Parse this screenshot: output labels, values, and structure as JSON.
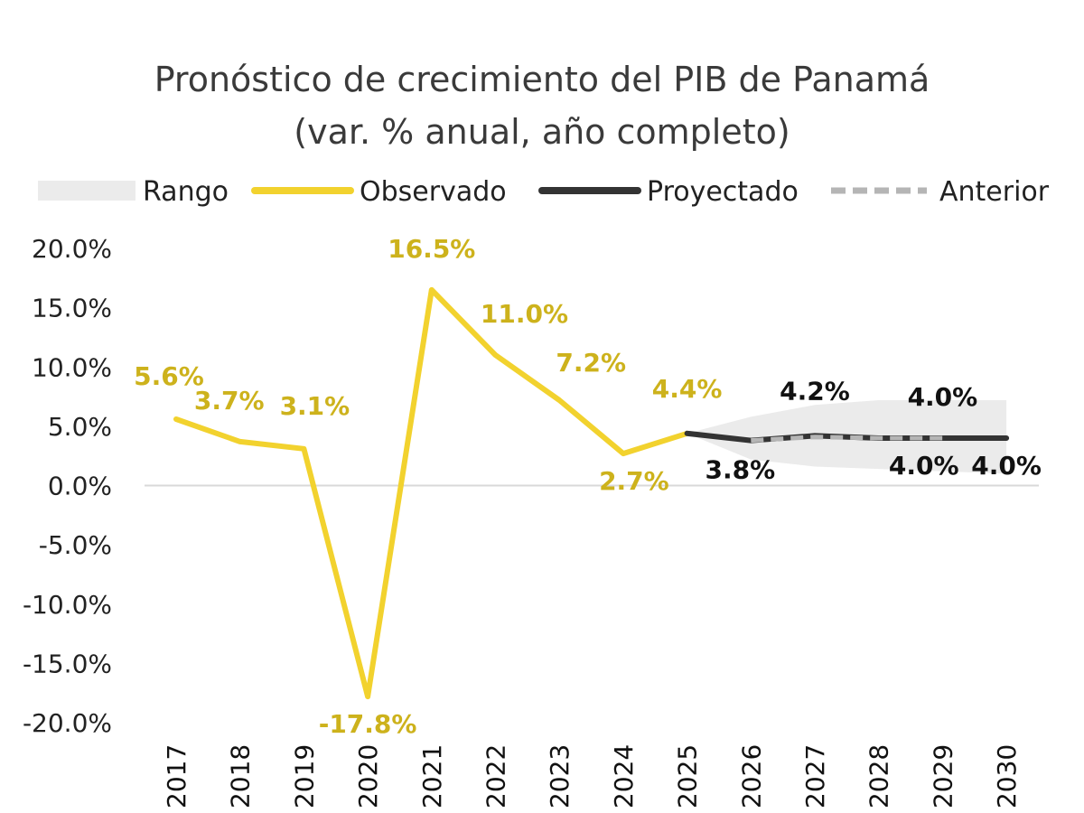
{
  "chart_data": {
    "type": "line",
    "title": "Pronóstico de crecimiento del PIB de Panamá",
    "subtitle": "(var. % anual, año completo)",
    "x": [
      "2017",
      "2018",
      "2019",
      "2020",
      "2021",
      "2022",
      "2023",
      "2024",
      "2025",
      "2026",
      "2027",
      "2028",
      "2029",
      "2030"
    ],
    "ylim": [
      -20,
      20
    ],
    "yticks": [
      "20.0%",
      "15.0%",
      "10.0%",
      "5.0%",
      "0.0%",
      "-5.0%",
      "-10.0%",
      "-15.0%",
      "-20.0%"
    ],
    "grid": false,
    "legend_position": "top",
    "legend": [
      "Rango",
      "Observado",
      "Proyectado",
      "Anterior"
    ],
    "series": [
      {
        "name": "Observado",
        "color": "#F2D22E",
        "values": [
          5.6,
          3.7,
          3.1,
          -17.8,
          16.5,
          11.0,
          7.2,
          2.7,
          4.4,
          null,
          null,
          null,
          null,
          null
        ],
        "labels": [
          "5.6%",
          "3.7%",
          "3.1%",
          "-17.8%",
          "16.5%",
          "11.0%",
          "7.2%",
          "2.7%",
          "4.4%",
          "",
          "",
          "",
          "",
          ""
        ]
      },
      {
        "name": "Proyectado",
        "color": "#333333",
        "values": [
          null,
          null,
          null,
          null,
          null,
          null,
          null,
          null,
          4.4,
          3.8,
          4.2,
          4.0,
          4.0,
          4.0
        ],
        "labels": [
          "",
          "",
          "",
          "",
          "",
          "",
          "",
          "",
          "",
          "3.8%",
          "4.2%",
          "4.0%",
          "4.0%",
          "4.0%"
        ]
      },
      {
        "name": "Anterior",
        "color": "#B5B5B5",
        "values": [
          null,
          null,
          null,
          null,
          null,
          null,
          null,
          null,
          null,
          3.8,
          4.1,
          4.0,
          4.0,
          null
        ]
      },
      {
        "name": "Rango",
        "color": "#EBEBEB",
        "upper": [
          null,
          null,
          null,
          null,
          null,
          null,
          null,
          null,
          4.4,
          5.8,
          6.8,
          7.2,
          7.2,
          7.2
        ],
        "lower": [
          null,
          null,
          null,
          null,
          null,
          null,
          null,
          null,
          4.4,
          2.2,
          1.6,
          1.4,
          1.2,
          1.0
        ]
      }
    ],
    "label_colors": {
      "observed": "#CDB21C",
      "projected": "#111111"
    }
  }
}
